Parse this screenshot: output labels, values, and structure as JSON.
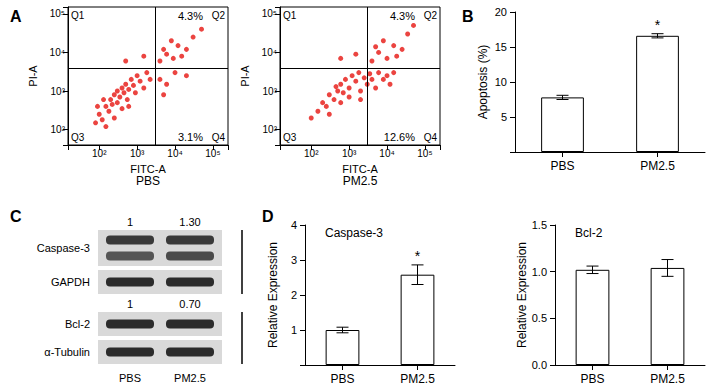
{
  "chart_data": [
    {
      "panel": "A",
      "type": "scatter",
      "subtitle": "PBS",
      "x_label": "FITC-A",
      "y_label": "PI-A",
      "log": true,
      "color": "#e8231f",
      "xlim": [
        15,
        250000
      ],
      "ylim": [
        40,
        150000
      ],
      "xticks": [
        {
          "value": 100,
          "label": "10²"
        },
        {
          "value": 1000,
          "label": "10³"
        },
        {
          "value": 10000,
          "label": "10⁴"
        },
        {
          "value": 100000,
          "label": "10⁵"
        }
      ],
      "yticks": [
        {
          "value": 100,
          "label": "10²"
        },
        {
          "value": 1000,
          "label": "10³"
        },
        {
          "value": 10000,
          "label": "10⁴"
        },
        {
          "value": 100000,
          "label": "10⁵"
        }
      ],
      "gates": {
        "x": 3000,
        "y": 4000
      },
      "quadrants": [
        {
          "name": "Q1"
        },
        {
          "name": "Q2",
          "value": 4.3,
          "value_label": "4.3%"
        },
        {
          "name": "Q3"
        },
        {
          "name": "Q4",
          "value": 3.1,
          "value_label": "3.1%"
        }
      ],
      "points": [
        [
          80,
          150
        ],
        [
          100,
          250
        ],
        [
          120,
          180
        ],
        [
          150,
          400
        ],
        [
          180,
          300
        ],
        [
          200,
          600
        ],
        [
          220,
          450
        ],
        [
          250,
          800
        ],
        [
          300,
          500
        ],
        [
          300,
          1000
        ],
        [
          350,
          700
        ],
        [
          400,
          1200
        ],
        [
          450,
          900
        ],
        [
          500,
          1500
        ],
        [
          550,
          600
        ],
        [
          600,
          1100
        ],
        [
          700,
          2000
        ],
        [
          800,
          1400
        ],
        [
          900,
          900
        ],
        [
          1000,
          2500
        ],
        [
          1200,
          1800
        ],
        [
          1500,
          1200
        ],
        [
          1800,
          3000
        ],
        [
          2200,
          2000
        ],
        [
          150,
          120
        ],
        [
          250,
          200
        ],
        [
          400,
          350
        ],
        [
          130,
          600
        ],
        [
          600,
          400
        ],
        [
          90,
          400
        ],
        [
          4000,
          6000
        ],
        [
          6000,
          9000
        ],
        [
          9000,
          7000
        ],
        [
          12000,
          15000
        ],
        [
          20000,
          12000
        ],
        [
          30000,
          25000
        ],
        [
          8000,
          20000
        ],
        [
          15000,
          8000
        ],
        [
          50000,
          40000
        ],
        [
          5000,
          12000
        ],
        [
          4000,
          2000
        ],
        [
          6000,
          1500
        ],
        [
          10000,
          3000
        ],
        [
          5000,
          800
        ],
        [
          20000,
          2500
        ],
        [
          500,
          6000
        ],
        [
          1500,
          8000
        ]
      ]
    },
    {
      "type": "scatter",
      "subtitle": "PM2.5",
      "x_label": "FITC-A",
      "y_label": "PI-A",
      "log": true,
      "color": "#e8231f",
      "xlim": [
        15,
        250000
      ],
      "ylim": [
        40,
        150000
      ],
      "xticks": [
        {
          "value": 100,
          "label": "10²"
        },
        {
          "value": 1000,
          "label": "10³"
        },
        {
          "value": 10000,
          "label": "10⁴"
        },
        {
          "value": 100000,
          "label": "10⁵"
        }
      ],
      "yticks": [
        {
          "value": 100,
          "label": "10²"
        },
        {
          "value": 1000,
          "label": "10³"
        },
        {
          "value": 10000,
          "label": "10⁴"
        },
        {
          "value": 100000,
          "label": "10⁵"
        }
      ],
      "gates": {
        "x": 3000,
        "y": 4000
      },
      "quadrants": [
        {
          "name": "Q1"
        },
        {
          "name": "Q2",
          "value": 4.3,
          "value_label": "4.3%"
        },
        {
          "name": "Q3"
        },
        {
          "name": "Q4",
          "value": 12.6,
          "value_label": "12.6%"
        }
      ],
      "points": [
        [
          100,
          200
        ],
        [
          150,
          300
        ],
        [
          200,
          500
        ],
        [
          250,
          400
        ],
        [
          300,
          800
        ],
        [
          400,
          600
        ],
        [
          500,
          1000
        ],
        [
          600,
          1500
        ],
        [
          700,
          900
        ],
        [
          800,
          2000
        ],
        [
          1000,
          1200
        ],
        [
          1200,
          2500
        ],
        [
          1500,
          1800
        ],
        [
          1800,
          3000
        ],
        [
          2000,
          1000
        ],
        [
          2500,
          2200
        ],
        [
          3000,
          1500
        ],
        [
          3500,
          2800
        ],
        [
          4000,
          2000
        ],
        [
          5000,
          1200
        ],
        [
          6000,
          3000
        ],
        [
          8000,
          2000
        ],
        [
          10000,
          2500
        ],
        [
          12000,
          1500
        ],
        [
          15000,
          3000
        ],
        [
          300,
          250
        ],
        [
          600,
          500
        ],
        [
          1000,
          700
        ],
        [
          2000,
          600
        ],
        [
          450,
          1300
        ],
        [
          4000,
          6000
        ],
        [
          6000,
          10000
        ],
        [
          10000,
          7000
        ],
        [
          15000,
          15000
        ],
        [
          25000,
          12000
        ],
        [
          35000,
          30000
        ],
        [
          8000,
          20000
        ],
        [
          18000,
          8000
        ],
        [
          50000,
          50000
        ],
        [
          5000,
          14000
        ],
        [
          600,
          7000
        ],
        [
          1500,
          9000
        ]
      ]
    },
    {
      "panel": "B",
      "type": "bar",
      "categories": [
        "PBS",
        "PM2.5"
      ],
      "values": [
        7.8,
        16.6
      ],
      "errors": [
        0.3,
        0.3
      ],
      "color": "#ffffff",
      "y_label": "Apoptosis (%)",
      "ylim": [
        0,
        20
      ],
      "yticks": [
        0,
        5,
        10,
        15,
        20
      ],
      "annotations": [
        {
          "category": "PM2.5",
          "text": "*"
        }
      ]
    },
    {
      "panel": "D",
      "type": "bar",
      "title": "Caspase-3",
      "categories": [
        "PBS",
        "PM2.5"
      ],
      "values": [
        1.0,
        2.58
      ],
      "errors": [
        0.08,
        0.28
      ],
      "color": "#ffffff",
      "y_label": "Relative Expression",
      "ylim": [
        0,
        4
      ],
      "yticks": [
        0,
        1,
        2,
        3,
        4
      ],
      "annotations": [
        {
          "category": "PM2.5",
          "text": "*"
        }
      ]
    },
    {
      "type": "bar",
      "title": "Bcl-2",
      "categories": [
        "PBS",
        "PM2.5"
      ],
      "values": [
        1.02,
        1.04
      ],
      "errors": [
        0.04,
        0.09
      ],
      "color": "#ffffff",
      "y_label": "Relative Expression",
      "ylim": [
        0,
        1.5
      ],
      "yticks": [
        {
          "value": 0,
          "label": "0.0"
        },
        {
          "value": 0.5,
          "label": "0.5"
        },
        {
          "value": 1,
          "label": "1.0"
        },
        {
          "value": 1.5,
          "label": "1.5"
        }
      ]
    }
  ],
  "blot": {
    "panel": "C",
    "lanes": [
      "PBS",
      "PM2.5"
    ],
    "groups": [
      {
        "ratios": [
          1,
          {
            "value": 1.3,
            "label": "1.30"
          }
        ],
        "rows": [
          "Caspase-3",
          "GAPDH"
        ]
      },
      {
        "ratios": [
          1,
          {
            "value": 0.7,
            "label": "0.70"
          }
        ],
        "rows": [
          "Bcl-2",
          "α-Tubulin"
        ]
      }
    ]
  }
}
